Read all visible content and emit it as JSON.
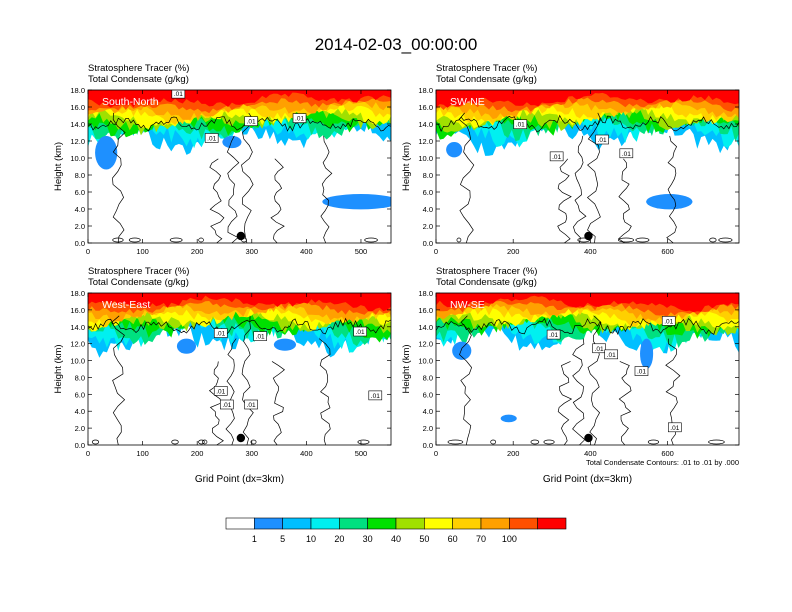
{
  "title": "2014-02-03_00:00:00",
  "colors": {
    "levels": [
      "#ffffff",
      "#1e90ff",
      "#00bfff",
      "#00f0f0",
      "#00e080",
      "#00e000",
      "#a0e000",
      "#ffff00",
      "#ffd000",
      "#ffa000",
      "#ff5000",
      "#ff0000"
    ],
    "contour": "#000000",
    "marker": "#000000"
  },
  "chart_data": [
    {
      "type": "heatmap",
      "label": "South-North",
      "title_left": "Stratosphere Tracer   (%)",
      "subtitle_left": "Total Condensate   (g/kg)",
      "ylabel": "Height (km)",
      "xlabel": "",
      "xlim": [
        0,
        555
      ],
      "ylim": [
        0,
        18
      ],
      "x_ticks": [
        "0",
        "100",
        "200",
        "300",
        "400",
        "500"
      ],
      "y_ticks": [
        "0.0",
        "2.0",
        "4.0",
        "6.0",
        "8.0",
        "10.0",
        "12.0",
        "14.0",
        "16.0",
        "18.0"
      ],
      "contour_labels": [
        ".01",
        ".01",
        ".01",
        ".01"
      ],
      "marker_x": 280,
      "footnote": ""
    },
    {
      "type": "heatmap",
      "label": "SW-NE",
      "title_left": "Stratosphere Tracer   (%)",
      "subtitle_left": "Total Condensate   (g/kg)",
      "ylabel": "Height (km)",
      "xlabel": "",
      "xlim": [
        0,
        785
      ],
      "ylim": [
        0,
        18
      ],
      "x_ticks": [
        "0",
        "200",
        "400",
        "600"
      ],
      "y_ticks": [
        "0.0",
        "2.0",
        "4.0",
        "6.0",
        "8.0",
        "10.0",
        "12.0",
        "14.0",
        "16.0",
        "18.0"
      ],
      "contour_labels": [
        ".01",
        ".01",
        ".01",
        ".01"
      ],
      "marker_x": 395,
      "footnote": ""
    },
    {
      "type": "heatmap",
      "label": "West-East",
      "title_left": "Stratosphere Tracer   (%)",
      "subtitle_left": "Total Condensate   (g/kg)",
      "ylabel": "Height (km)",
      "xlabel": "Grid Point (dx=3km)",
      "xlim": [
        0,
        555
      ],
      "ylim": [
        0,
        18
      ],
      "x_ticks": [
        "0",
        "100",
        "200",
        "300",
        "400",
        "500"
      ],
      "y_ticks": [
        "0.0",
        "2.0",
        "4.0",
        "6.0",
        "8.0",
        "10.0",
        "12.0",
        "14.0",
        "16.0",
        "18.0"
      ],
      "contour_labels": [
        ".01",
        ".01",
        ".01",
        ".01",
        ".01",
        ".01",
        ".01"
      ],
      "marker_x": 280,
      "footnote": ""
    },
    {
      "type": "heatmap",
      "label": "NW-SE",
      "title_left": "Stratosphere Tracer   (%)",
      "subtitle_left": "Total Condensate   (g/kg)",
      "ylabel": "Height (km)",
      "xlabel": "Grid Point (dx=3km)",
      "xlim": [
        0,
        785
      ],
      "ylim": [
        0,
        18
      ],
      "x_ticks": [
        "0",
        "200",
        "400",
        "600"
      ],
      "y_ticks": [
        "0.0",
        "2.0",
        "4.0",
        "6.0",
        "8.0",
        "10.0",
        "12.0",
        "14.0",
        "16.0",
        "18.0"
      ],
      "contour_labels": [
        ".01",
        ".01",
        ".01",
        ".01",
        ".01",
        ".01"
      ],
      "marker_x": 395,
      "footnote": "Total Condensate Contours: .01 to .01 by .000"
    }
  ],
  "colorbar": {
    "labels": [
      "1",
      "5",
      "10",
      "20",
      "30",
      "40",
      "50",
      "60",
      "70",
      "100"
    ]
  }
}
